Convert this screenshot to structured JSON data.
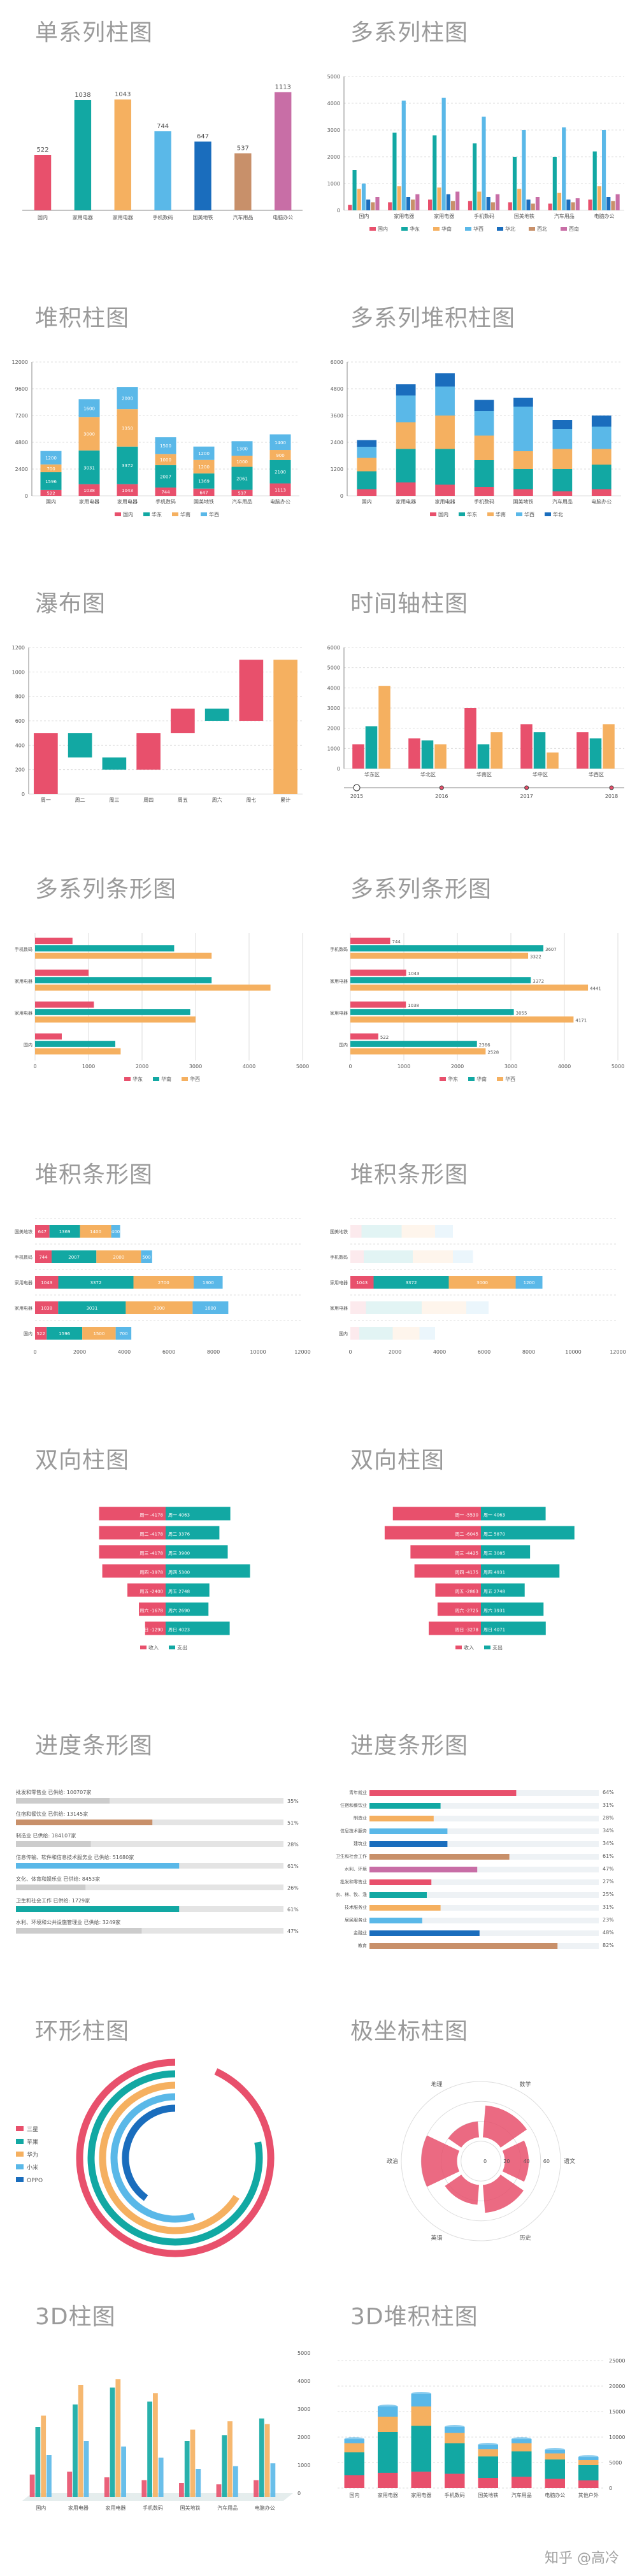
{
  "palette": {
    "c1": "#e8506c",
    "c2": "#12a8a3",
    "c3": "#f5b060",
    "c4": "#5ab8e8",
    "c5": "#1a6dbd",
    "c6": "#c8906a",
    "c7": "#c86ea6",
    "grid": "#dddddd",
    "axis": "#888888",
    "text": "#555555",
    "title": "#9a9a9a"
  },
  "titles": {
    "p1": "单系列柱图",
    "p2": "多系列柱图",
    "p3": "堆积柱图",
    "p4": "多系列堆积柱图",
    "p5": "瀑布图",
    "p6": "时间轴柱图",
    "p7": "多系列条形图",
    "p8": "多系列条形图",
    "p9": "堆积条形图",
    "p10": "堆积条形图",
    "p11": "双向柱图",
    "p12": "双向柱图",
    "p13": "进度条形图",
    "p14": "进度条形图",
    "p15": "环形柱图",
    "p16": "极坐标柱图",
    "p17": "3D柱图",
    "p18": "3D堆积柱图"
  },
  "watermark": "知乎 @高冷",
  "chart_data": [
    {
      "id": "p1",
      "type": "bar",
      "categories": [
        "国内",
        "家用电器",
        "家用电器",
        "手机数码",
        "国美地铁",
        "汽车用品",
        "电脑办公"
      ],
      "values": [
        522,
        1038,
        1043,
        744,
        647,
        537,
        1113
      ],
      "data_labels": true
    },
    {
      "id": "p2",
      "type": "bar",
      "categories": [
        "国内",
        "家用电器",
        "家用电器",
        "手机数码",
        "国美地铁",
        "汽车用品",
        "电脑办公"
      ],
      "series": [
        {
          "name": "国内",
          "values": [
            200,
            300,
            400,
            350,
            300,
            250,
            400
          ]
        },
        {
          "name": "华东",
          "values": [
            1500,
            2900,
            2800,
            2500,
            2000,
            2000,
            2200
          ]
        },
        {
          "name": "华南",
          "values": [
            800,
            900,
            850,
            700,
            800,
            650,
            900
          ]
        },
        {
          "name": "华西",
          "values": [
            1000,
            4100,
            4200,
            3500,
            3000,
            3100,
            3000
          ]
        },
        {
          "name": "华北",
          "values": [
            400,
            500,
            600,
            500,
            400,
            400,
            500
          ]
        },
        {
          "name": "西北",
          "values": [
            300,
            400,
            350,
            300,
            250,
            300,
            350
          ]
        },
        {
          "name": "西南",
          "values": [
            500,
            600,
            700,
            600,
            500,
            450,
            600
          ]
        }
      ],
      "ylim": [
        0,
        5000
      ]
    },
    {
      "id": "p3",
      "type": "bar",
      "stacked": true,
      "categories": [
        "国内",
        "家用电器",
        "家用电器",
        "手机数码",
        "国美地铁",
        "汽车用品",
        "电脑办公"
      ],
      "series": [
        {
          "name": "国内",
          "values": [
            522,
            1038,
            1043,
            744,
            647,
            537,
            1113
          ]
        },
        {
          "name": "华东",
          "values": [
            1596,
            3031,
            3372,
            2007,
            1369,
            2061,
            2100
          ]
        },
        {
          "name": "华南",
          "values": [
            700,
            3000,
            3350,
            1000,
            1200,
            1000,
            900
          ]
        },
        {
          "name": "华西",
          "values": [
            1200,
            1600,
            2000,
            1500,
            1200,
            1300,
            1400
          ]
        }
      ],
      "ylim": [
        0,
        12000
      ]
    },
    {
      "id": "p4",
      "type": "bar",
      "stacked": true,
      "categories": [
        "国内",
        "家用电器",
        "家用电器",
        "手机数码",
        "国美地铁",
        "汽车用品",
        "电脑办公"
      ],
      "series": [
        {
          "name": "国内",
          "values": [
            300,
            600,
            500,
            400,
            300,
            200,
            300
          ]
        },
        {
          "name": "华东",
          "values": [
            800,
            1500,
            1600,
            1200,
            900,
            1000,
            1100
          ]
        },
        {
          "name": "华南",
          "values": [
            600,
            1200,
            1500,
            1100,
            800,
            900,
            700
          ]
        },
        {
          "name": "华西",
          "values": [
            500,
            1200,
            1300,
            1100,
            2000,
            900,
            1000
          ]
        },
        {
          "name": "华北",
          "values": [
            300,
            500,
            600,
            500,
            400,
            400,
            500
          ]
        }
      ],
      "ylim": [
        0,
        6000
      ]
    },
    {
      "id": "p5",
      "type": "bar",
      "waterfall": true,
      "categories": [
        "周一",
        "周二",
        "周三",
        "周四",
        "周五",
        "周六",
        "周七",
        "累计"
      ],
      "values": [
        500,
        -200,
        -100,
        300,
        200,
        -100,
        500,
        1100
      ],
      "ylim": [
        0,
        1200
      ]
    },
    {
      "id": "p6",
      "type": "bar",
      "categories": [
        "华东区",
        "华北区",
        "华南区",
        "华中区",
        "华西区"
      ],
      "series": [
        {
          "name": "2015",
          "values": [
            1200,
            1500,
            3000,
            2200,
            1800
          ]
        },
        {
          "name": "2016",
          "values": [
            2100,
            1400,
            1200,
            1800,
            1500
          ]
        },
        {
          "name": "2017",
          "values": [
            4100,
            1200,
            1800,
            800,
            2200
          ]
        }
      ],
      "timeline": [
        "2015",
        "2016",
        "2017",
        "2018"
      ],
      "ylim": [
        0,
        6000
      ]
    },
    {
      "id": "p7",
      "type": "bar",
      "horizontal": true,
      "categories": [
        "国内",
        "家用电器",
        "家用电器",
        "手机数码"
      ],
      "series": [
        {
          "name": "华东",
          "values": [
            500,
            1100,
            1000,
            700
          ]
        },
        {
          "name": "华南",
          "values": [
            1500,
            2900,
            3300,
            2600
          ]
        },
        {
          "name": "华西",
          "values": [
            1600,
            3000,
            4400,
            3300
          ]
        }
      ],
      "xlim": [
        0,
        5000
      ]
    },
    {
      "id": "p8",
      "type": "bar",
      "horizontal": true,
      "categories": [
        "国内",
        "家用电器",
        "家用电器",
        "手机数码"
      ],
      "series": [
        {
          "name": "华东",
          "values": [
            522,
            1038,
            1043,
            744
          ]
        },
        {
          "name": "华南",
          "values": [
            2366,
            3055,
            3372,
            3607
          ]
        },
        {
          "name": "华西",
          "values": [
            2528,
            4171,
            4441,
            3322
          ]
        }
      ],
      "xlim": [
        0,
        5000
      ]
    },
    {
      "id": "p9",
      "type": "bar",
      "horizontal": true,
      "stacked": true,
      "categories": [
        "国内",
        "家用电器",
        "家用电器",
        "手机数码",
        "国美地铁"
      ],
      "series": [
        {
          "name": "国内",
          "values": [
            522,
            1038,
            1043,
            744,
            647
          ]
        },
        {
          "name": "华东",
          "values": [
            1596,
            3031,
            3372,
            2007,
            1369
          ]
        },
        {
          "name": "华南",
          "values": [
            1500,
            3000,
            2700,
            2000,
            1400
          ]
        },
        {
          "name": "华西",
          "values": [
            700,
            1600,
            1300,
            500,
            400
          ]
        }
      ],
      "xlim": [
        0,
        12000
      ]
    },
    {
      "id": "p10",
      "type": "bar",
      "horizontal": true,
      "stacked": true,
      "categories": [
        "国内",
        "家用电器",
        "家用电器",
        "手机数码",
        "国美地铁"
      ],
      "series": [
        {
          "name": "国内",
          "values": [
            400,
            700,
            1043,
            600,
            500
          ]
        },
        {
          "name": "华东",
          "values": [
            1500,
            2500,
            3372,
            2200,
            1800
          ]
        },
        {
          "name": "华南",
          "values": [
            1200,
            2000,
            3000,
            1800,
            1500
          ]
        },
        {
          "name": "华西",
          "values": [
            700,
            1000,
            1200,
            900,
            800
          ]
        }
      ],
      "xlim": [
        0,
        12000
      ]
    },
    {
      "id": "p11",
      "type": "bar",
      "diverging": true,
      "categories": [
        "周一",
        "周二",
        "周三",
        "周四",
        "周五",
        "周六",
        "周日"
      ],
      "series": [
        {
          "name": "收入",
          "values": [
            -4178,
            -4178,
            -4178,
            -3978,
            -2400,
            -1678,
            -1290
          ]
        },
        {
          "name": "支出",
          "values": [
            4063,
            3376,
            3900,
            5300,
            2748,
            2690,
            4023
          ]
        }
      ]
    },
    {
      "id": "p12",
      "type": "bar",
      "diverging": true,
      "categories": [
        "周一",
        "周二",
        "周三",
        "周四",
        "周五",
        "周六",
        "周日"
      ],
      "series": [
        {
          "name": "收入",
          "values": [
            -5530,
            -6045,
            -4425,
            -4175,
            -2863,
            -2725,
            -3278
          ]
        },
        {
          "name": "支出",
          "values": [
            4063,
            5870,
            3085,
            4931,
            2748,
            3931,
            4071
          ]
        }
      ]
    },
    {
      "id": "p13",
      "type": "bar",
      "progress": true,
      "rows": [
        {
          "label": "批发和零售业  已供给: 100707家",
          "pct": 35
        },
        {
          "label": "住宿和餐饮业  已供给: 13145家",
          "pct": 51
        },
        {
          "label": "制造业  已供给: 184107家",
          "pct": 28
        },
        {
          "label": "信息传输、软件和信息技术服务业  已供给: 51680家",
          "pct": 61
        },
        {
          "label": "文化、体育和娱乐业  已供给: 8453家",
          "pct": 26
        },
        {
          "label": "卫生和社会工作  已供给: 1729家",
          "pct": 61
        },
        {
          "label": "水利、环境和公共设施管理业  已供给: 3249家",
          "pct": 47
        }
      ]
    },
    {
      "id": "p14",
      "type": "bar",
      "progress": true,
      "rows": [
        {
          "label": "青年就业",
          "pct": 64
        },
        {
          "label": "住宿和餐饮业",
          "pct": 31
        },
        {
          "label": "制造业",
          "pct": 28
        },
        {
          "label": "信息技术服务",
          "pct": 34
        },
        {
          "label": "建筑业",
          "pct": 34
        },
        {
          "label": "卫生和社会工作",
          "pct": 61
        },
        {
          "label": "水利、环境",
          "pct": 47
        },
        {
          "label": "批发和零售业",
          "pct": 27
        },
        {
          "label": "农、林、牧、渔",
          "pct": 25
        },
        {
          "label": "技术服务业",
          "pct": 31
        },
        {
          "label": "居民服务业",
          "pct": 23
        },
        {
          "label": "金融业",
          "pct": 48
        },
        {
          "label": "教育",
          "pct": 82
        }
      ]
    },
    {
      "id": "p15",
      "type": "bar",
      "radial": true,
      "series": [
        {
          "name": "三星",
          "value": 0.93
        },
        {
          "name": "苹果",
          "value": 0.78
        },
        {
          "name": "华为",
          "value": 0.66
        },
        {
          "name": "小米",
          "value": 0.55
        },
        {
          "name": "OPPO",
          "value": 0.4
        }
      ]
    },
    {
      "id": "p16",
      "type": "bar",
      "polar": true,
      "categories": [
        "数学",
        "语文",
        "历史",
        "英语",
        "政治",
        "地理"
      ],
      "values": [
        70,
        60,
        65,
        55,
        75,
        50
      ],
      "ticks": [
        "0",
        "20",
        "40",
        "60"
      ]
    },
    {
      "id": "p17",
      "type": "bar",
      "categories": [
        "国内",
        "家用电器",
        "家用电器",
        "手机数码",
        "国美地铁",
        "汽车用品",
        "电脑办公"
      ],
      "series": [
        {
          "name": "国内",
          "values": [
            800,
            900,
            700,
            600,
            500,
            450,
            600
          ]
        },
        {
          "name": "华东",
          "values": [
            2500,
            3300,
            3900,
            3400,
            2000,
            2200,
            2800
          ]
        },
        {
          "name": "华南",
          "values": [
            2900,
            4000,
            4200,
            3700,
            2400,
            2700,
            2600
          ]
        },
        {
          "name": "华西",
          "values": [
            1500,
            2000,
            1800,
            1400,
            1000,
            1100,
            1200
          ]
        }
      ],
      "ylim": [
        0,
        5000
      ],
      "ticks": [
        "0",
        "1000",
        "2000",
        "3000",
        "4000",
        "5000"
      ]
    },
    {
      "id": "p18",
      "type": "bar",
      "stacked": true,
      "categories": [
        "国内",
        "家用电器",
        "家用电器",
        "手机数码",
        "国美地铁",
        "汽车用品",
        "电脑办公",
        "其他户外"
      ],
      "series": [
        {
          "name": "国内",
          "values": [
            2500,
            3000,
            3200,
            2800,
            2000,
            2200,
            1800,
            1500
          ]
        },
        {
          "name": "华东",
          "values": [
            4500,
            8000,
            9000,
            6000,
            4200,
            5000,
            3800,
            3000
          ]
        },
        {
          "name": "华南",
          "values": [
            1800,
            3000,
            3800,
            2000,
            1400,
            1600,
            1200,
            1000
          ]
        },
        {
          "name": "华西",
          "values": [
            800,
            2000,
            2500,
            1200,
            900,
            800,
            700,
            600
          ]
        }
      ],
      "ylim": [
        0,
        25000
      ],
      "ticks": [
        "0",
        "5000",
        "10000",
        "15000",
        "20000",
        "25000"
      ]
    }
  ]
}
